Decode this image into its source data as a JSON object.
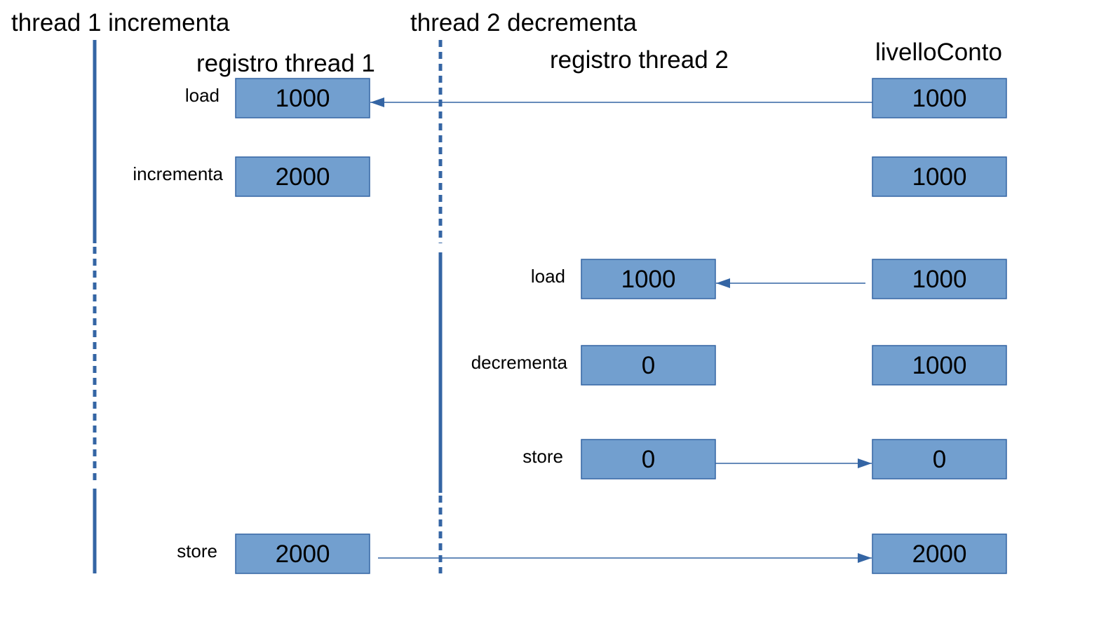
{
  "headers": {
    "thread1": "thread 1 incrementa",
    "thread2": "thread 2 decrementa",
    "reg1": "registro thread 1",
    "reg2": "registro thread 2",
    "account": "livelloConto"
  },
  "steps": [
    {
      "thread": 1,
      "op": "load",
      "register": "1000",
      "account": "1000",
      "arrow": "account-to-register"
    },
    {
      "thread": 1,
      "op": "incrementa",
      "register": "2000",
      "account": "1000",
      "arrow": "none"
    },
    {
      "thread": 2,
      "op": "load",
      "register": "1000",
      "account": "1000",
      "arrow": "account-to-register"
    },
    {
      "thread": 2,
      "op": "decrementa",
      "register": "0",
      "account": "1000",
      "arrow": "none"
    },
    {
      "thread": 2,
      "op": "store",
      "register": "0",
      "account": "0",
      "arrow": "register-to-account"
    },
    {
      "thread": 1,
      "op": "store",
      "register": "2000",
      "account": "2000",
      "arrow": "register-to-account"
    }
  ],
  "colors": {
    "box_fill": "#729fcf",
    "box_stroke": "#3465a4",
    "line": "#3465a4"
  }
}
